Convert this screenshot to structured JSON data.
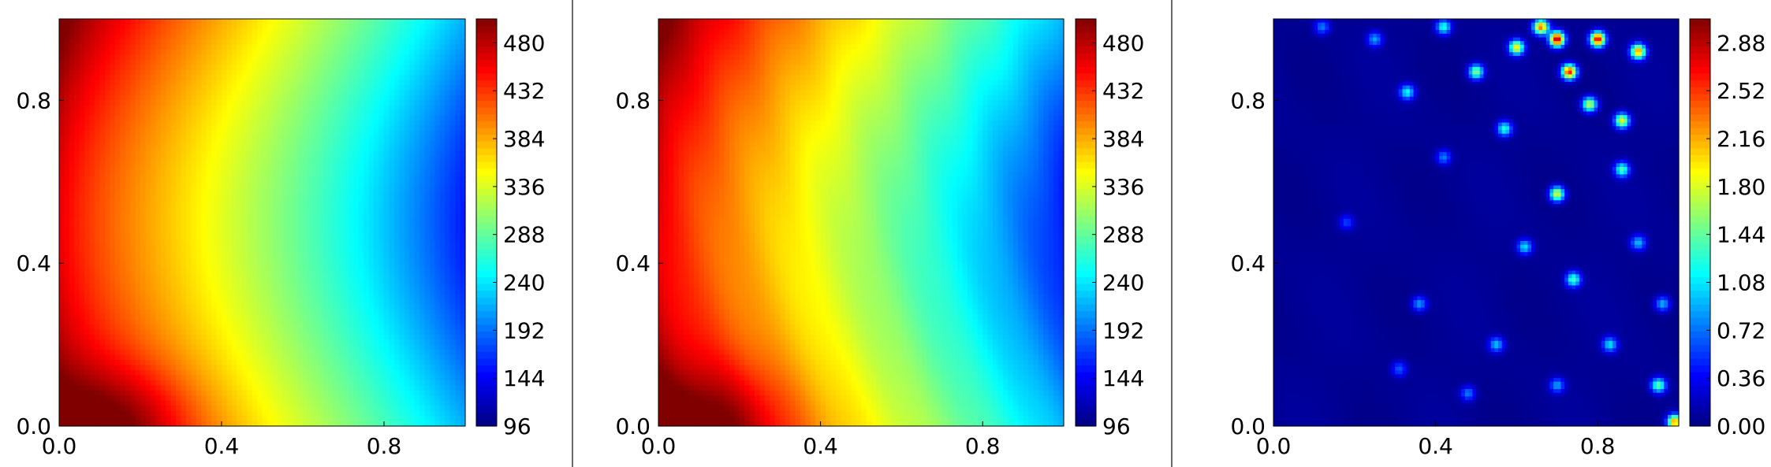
{
  "chart_data": [
    {
      "type": "heatmap",
      "title": "",
      "xlabel": "",
      "ylabel": "",
      "xlim": [
        0.0,
        1.0
      ],
      "ylim": [
        0.0,
        1.0
      ],
      "x_ticks": [
        "0.0",
        "0.4",
        "0.8"
      ],
      "y_ticks": [
        "0.0",
        "0.4",
        "0.8"
      ],
      "colormap": "jet",
      "colorbar": {
        "min": 96,
        "max": 504,
        "ticks": [
          "96",
          "144",
          "192",
          "240",
          "288",
          "336",
          "384",
          "432",
          "480"
        ]
      },
      "field_points": [
        {
          "x": 0.15,
          "y": 0.0,
          "value": 500
        },
        {
          "x": 0.0,
          "y": 0.5,
          "value": 455
        },
        {
          "x": 0.4,
          "y": 0.5,
          "value": 345
        },
        {
          "x": 0.6,
          "y": 0.5,
          "value": 280
        },
        {
          "x": 0.8,
          "y": 0.5,
          "value": 200
        },
        {
          "x": 1.0,
          "y": 0.5,
          "value": 100
        }
      ]
    },
    {
      "type": "heatmap",
      "title": "",
      "xlabel": "",
      "ylabel": "",
      "xlim": [
        0.0,
        1.0
      ],
      "ylim": [
        0.0,
        1.0
      ],
      "x_ticks": [
        "0.0",
        "0.4",
        "0.8"
      ],
      "y_ticks": [
        "0.0",
        "0.4",
        "0.8"
      ],
      "colormap": "jet",
      "colorbar": {
        "min": 96,
        "max": 504,
        "ticks": [
          "96",
          "144",
          "192",
          "240",
          "288",
          "336",
          "384",
          "432",
          "480"
        ]
      },
      "field_points": [
        {
          "x": 0.15,
          "y": 0.0,
          "value": 500
        },
        {
          "x": 0.0,
          "y": 0.5,
          "value": 455
        },
        {
          "x": 0.4,
          "y": 0.5,
          "value": 345
        },
        {
          "x": 0.6,
          "y": 0.5,
          "value": 280
        },
        {
          "x": 0.8,
          "y": 0.5,
          "value": 200
        },
        {
          "x": 1.0,
          "y": 0.5,
          "value": 100
        }
      ]
    },
    {
      "type": "heatmap",
      "title": "",
      "xlabel": "",
      "ylabel": "",
      "xlim": [
        0.0,
        1.0
      ],
      "ylim": [
        0.0,
        1.0
      ],
      "x_ticks": [
        "0.0",
        "0.4",
        "0.8"
      ],
      "y_ticks": [
        "0.0",
        "0.4",
        "0.8"
      ],
      "colormap": "jet",
      "colorbar": {
        "min": 0.0,
        "max": 3.06,
        "ticks": [
          "0.00",
          "0.36",
          "0.72",
          "1.08",
          "1.44",
          "1.80",
          "2.16",
          "2.52",
          "2.88"
        ]
      },
      "hotspots": [
        {
          "x": 0.7,
          "y": 0.95,
          "value": 2.9
        },
        {
          "x": 0.8,
          "y": 0.95,
          "value": 2.7
        },
        {
          "x": 0.73,
          "y": 0.87,
          "value": 2.6
        },
        {
          "x": 0.66,
          "y": 0.98,
          "value": 2.3
        },
        {
          "x": 0.9,
          "y": 0.92,
          "value": 2.2
        },
        {
          "x": 0.6,
          "y": 0.93,
          "value": 1.9
        },
        {
          "x": 0.86,
          "y": 0.75,
          "value": 1.8
        },
        {
          "x": 0.78,
          "y": 0.79,
          "value": 1.7
        },
        {
          "x": 0.7,
          "y": 0.57,
          "value": 1.8
        },
        {
          "x": 0.5,
          "y": 0.87,
          "value": 1.5
        },
        {
          "x": 0.99,
          "y": 0.01,
          "value": 2.2
        },
        {
          "x": 0.95,
          "y": 0.1,
          "value": 1.4
        },
        {
          "x": 0.74,
          "y": 0.36,
          "value": 1.3
        },
        {
          "x": 0.42,
          "y": 0.98,
          "value": 1.2
        },
        {
          "x": 0.33,
          "y": 0.82,
          "value": 1.1
        },
        {
          "x": 0.57,
          "y": 0.73,
          "value": 1.2
        },
        {
          "x": 0.86,
          "y": 0.63,
          "value": 1.3
        },
        {
          "x": 0.62,
          "y": 0.44,
          "value": 1.0
        },
        {
          "x": 0.55,
          "y": 0.2,
          "value": 0.9
        },
        {
          "x": 0.36,
          "y": 0.3,
          "value": 0.8
        },
        {
          "x": 0.83,
          "y": 0.2,
          "value": 1.0
        },
        {
          "x": 0.25,
          "y": 0.95,
          "value": 0.8
        },
        {
          "x": 0.12,
          "y": 0.98,
          "value": 0.7
        },
        {
          "x": 0.18,
          "y": 0.5,
          "value": 0.5
        },
        {
          "x": 0.42,
          "y": 0.66,
          "value": 0.7
        },
        {
          "x": 0.9,
          "y": 0.45,
          "value": 0.9
        },
        {
          "x": 0.31,
          "y": 0.14,
          "value": 0.6
        },
        {
          "x": 0.48,
          "y": 0.08,
          "value": 0.7
        },
        {
          "x": 0.7,
          "y": 0.1,
          "value": 0.8
        },
        {
          "x": 0.96,
          "y": 0.3,
          "value": 0.9
        }
      ]
    }
  ]
}
